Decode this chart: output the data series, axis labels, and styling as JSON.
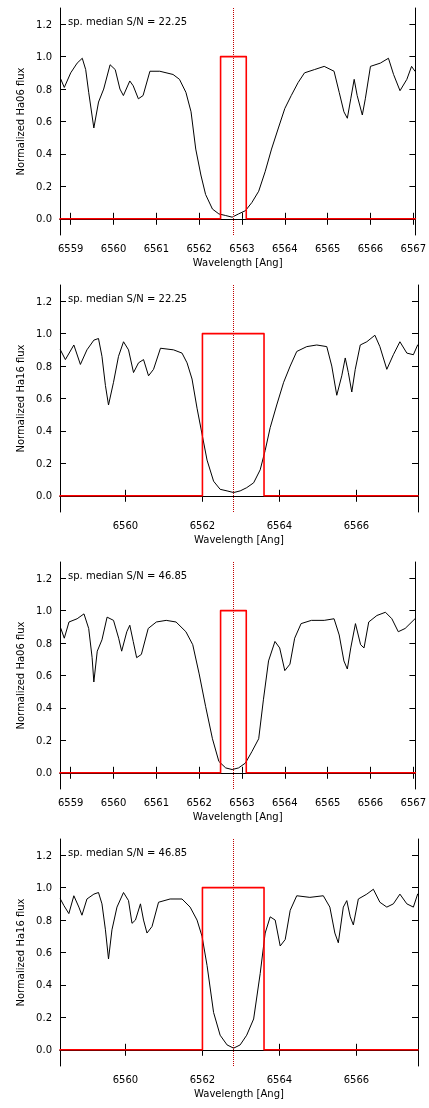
{
  "chart_data": [
    {
      "type": "line",
      "xlabel": "Wavelength [Ang]",
      "ylabel": "Normalized Ha06 flux",
      "annotations": [
        "sp. median S/N = 22.25"
      ],
      "xlim": [
        6558.75,
        6567.05
      ],
      "ylim": [
        -0.1,
        1.3
      ],
      "xticks": [
        6559,
        6560,
        6561,
        6562,
        6563,
        6564,
        6565,
        6566,
        6567
      ],
      "yticks": [
        {
          "value": 0,
          "label": "0.0"
        },
        {
          "value": 0.2,
          "label": "0.2"
        },
        {
          "value": 0.4,
          "label": "0.4"
        },
        {
          "value": 0.6,
          "label": "0.6"
        },
        {
          "value": 0.8,
          "label": "0.8"
        },
        {
          "value": 1,
          "label": "1.0"
        },
        {
          "value": 1.2,
          "label": "1.2"
        }
      ],
      "grid": false,
      "marker": "none",
      "line_style": "solid",
      "ref_lines": [
        {
          "axis": "x",
          "value": 6562.8,
          "color": "#c00000",
          "line_style": "dotted"
        }
      ],
      "series": [
        {
          "color": "#000000",
          "x": [
            6558.77,
            6558.85,
            6559.0,
            6559.15,
            6559.27,
            6559.35,
            6559.42,
            6559.54,
            6559.65,
            6559.77,
            6559.92,
            6560.04,
            6560.15,
            6560.23,
            6560.38,
            6560.46,
            6560.58,
            6560.69,
            6560.85,
            6561.08,
            6561.39,
            6561.54,
            6561.69,
            6561.81,
            6561.92,
            6562.04,
            6562.15,
            6562.31,
            6562.46,
            6562.62,
            6562.77,
            6562.92,
            6563.08,
            6563.23,
            6563.39,
            6563.54,
            6563.69,
            6563.85,
            6564.0,
            6564.15,
            6564.31,
            6564.46,
            6564.69,
            6564.92,
            6565.15,
            6565.27,
            6565.38,
            6565.46,
            6565.54,
            6565.62,
            6565.69,
            6565.81,
            6565.88,
            6566.0,
            6566.23,
            6566.42,
            6566.54,
            6566.69,
            6566.85,
            6566.96,
            6567.04
          ],
          "values": [
            0.86,
            0.81,
            0.9,
            0.96,
            0.99,
            0.92,
            0.78,
            0.56,
            0.72,
            0.8,
            0.95,
            0.92,
            0.8,
            0.76,
            0.85,
            0.82,
            0.74,
            0.76,
            0.91,
            0.91,
            0.89,
            0.86,
            0.78,
            0.66,
            0.43,
            0.27,
            0.15,
            0.06,
            0.03,
            0.02,
            0.01,
            0.03,
            0.05,
            0.1,
            0.17,
            0.29,
            0.43,
            0.56,
            0.68,
            0.76,
            0.84,
            0.9,
            0.92,
            0.94,
            0.91,
            0.78,
            0.66,
            0.62,
            0.74,
            0.86,
            0.76,
            0.64,
            0.74,
            0.94,
            0.96,
            0.99,
            0.89,
            0.79,
            0.86,
            0.94,
            0.91
          ]
        },
        {
          "color": "#ff0000",
          "x": [
            6558.75,
            6562.5,
            6562.5,
            6563.1,
            6563.1,
            6567.05
          ],
          "values": [
            0,
            0,
            1,
            1,
            0,
            0
          ]
        }
      ]
    },
    {
      "type": "line",
      "xlabel": "Wavelength [Ang]",
      "ylabel": "Normalized Ha16 flux",
      "annotations": [
        "sp. median S/N = 22.25"
      ],
      "xlim": [
        6558.3,
        6567.6
      ],
      "ylim": [
        -0.1,
        1.3
      ],
      "xticks": [
        6560,
        6562,
        6564,
        6566
      ],
      "yticks": [
        {
          "value": 0,
          "label": "0.0"
        },
        {
          "value": 0.2,
          "label": "0.2"
        },
        {
          "value": 0.4,
          "label": "0.4"
        },
        {
          "value": 0.6,
          "label": "0.6"
        },
        {
          "value": 0.8,
          "label": "0.8"
        },
        {
          "value": 1,
          "label": "1.0"
        },
        {
          "value": 1.2,
          "label": "1.2"
        }
      ],
      "grid": false,
      "marker": "none",
      "line_style": "solid",
      "ref_lines": [
        {
          "axis": "x",
          "value": 6562.8,
          "color": "#c00000",
          "line_style": "dotted"
        }
      ],
      "series": [
        {
          "color": "#000000",
          "x": [
            6558.31,
            6558.44,
            6558.66,
            6558.83,
            6559.0,
            6559.18,
            6559.3,
            6559.39,
            6559.48,
            6559.56,
            6559.69,
            6559.82,
            6559.95,
            6560.08,
            6560.21,
            6560.34,
            6560.47,
            6560.6,
            6560.73,
            6560.91,
            6561.25,
            6561.47,
            6561.6,
            6561.73,
            6561.86,
            6561.99,
            6562.12,
            6562.29,
            6562.46,
            6562.64,
            6562.81,
            6562.98,
            6563.15,
            6563.33,
            6563.5,
            6563.63,
            6563.76,
            6563.93,
            6564.11,
            6564.28,
            6564.45,
            6564.71,
            6564.97,
            6565.23,
            6565.36,
            6565.49,
            6565.62,
            6565.71,
            6565.79,
            6565.88,
            6565.97,
            6566.1,
            6566.27,
            6566.48,
            6566.61,
            6566.79,
            6566.96,
            6567.13,
            6567.31,
            6567.48,
            6567.59
          ],
          "values": [
            0.9,
            0.84,
            0.93,
            0.81,
            0.9,
            0.96,
            0.97,
            0.86,
            0.68,
            0.56,
            0.7,
            0.86,
            0.95,
            0.9,
            0.76,
            0.82,
            0.84,
            0.74,
            0.78,
            0.91,
            0.9,
            0.88,
            0.82,
            0.72,
            0.54,
            0.38,
            0.22,
            0.09,
            0.04,
            0.03,
            0.02,
            0.03,
            0.05,
            0.08,
            0.16,
            0.28,
            0.42,
            0.56,
            0.7,
            0.8,
            0.89,
            0.92,
            0.93,
            0.92,
            0.8,
            0.62,
            0.74,
            0.85,
            0.76,
            0.64,
            0.78,
            0.93,
            0.95,
            0.99,
            0.92,
            0.78,
            0.87,
            0.95,
            0.88,
            0.87,
            0.93
          ]
        },
        {
          "color": "#ff0000",
          "x": [
            6558.3,
            6562.0,
            6562.0,
            6563.6,
            6563.6,
            6567.6
          ],
          "values": [
            0,
            0,
            1,
            1,
            0,
            0
          ]
        }
      ]
    },
    {
      "type": "line",
      "xlabel": "Wavelength [Ang]",
      "ylabel": "Normalized Ha06 flux",
      "annotations": [
        "sp. median S/N = 46.85"
      ],
      "xlim": [
        6558.75,
        6567.05
      ],
      "ylim": [
        -0.1,
        1.3
      ],
      "xticks": [
        6559,
        6560,
        6561,
        6562,
        6563,
        6564,
        6565,
        6566,
        6567
      ],
      "yticks": [
        {
          "value": 0,
          "label": "0.0"
        },
        {
          "value": 0.2,
          "label": "0.2"
        },
        {
          "value": 0.4,
          "label": "0.4"
        },
        {
          "value": 0.6,
          "label": "0.6"
        },
        {
          "value": 0.8,
          "label": "0.8"
        },
        {
          "value": 1,
          "label": "1.0"
        },
        {
          "value": 1.2,
          "label": "1.2"
        }
      ],
      "grid": false,
      "marker": "none",
      "line_style": "solid",
      "ref_lines": [
        {
          "axis": "x",
          "value": 6562.8,
          "color": "#c00000",
          "line_style": "dotted"
        }
      ],
      "series": [
        {
          "color": "#000000",
          "x": [
            6558.77,
            6558.85,
            6558.96,
            6559.15,
            6559.31,
            6559.42,
            6559.5,
            6559.54,
            6559.62,
            6559.73,
            6559.85,
            6560.0,
            6560.12,
            6560.19,
            6560.31,
            6560.38,
            6560.46,
            6560.54,
            6560.65,
            6560.81,
            6561.0,
            6561.23,
            6561.46,
            6561.69,
            6561.85,
            6562.0,
            6562.15,
            6562.31,
            6562.46,
            6562.62,
            6562.77,
            6562.92,
            6563.08,
            6563.23,
            6563.39,
            6563.5,
            6563.62,
            6563.77,
            6563.88,
            6564.0,
            6564.12,
            6564.23,
            6564.38,
            6564.62,
            6564.92,
            6565.15,
            6565.27,
            6565.38,
            6565.46,
            6565.54,
            6565.65,
            6565.77,
            6565.85,
            6565.96,
            6566.15,
            6566.35,
            6566.5,
            6566.65,
            6566.81,
            6567.04
          ],
          "values": [
            0.89,
            0.83,
            0.93,
            0.95,
            0.98,
            0.89,
            0.71,
            0.56,
            0.75,
            0.82,
            0.96,
            0.94,
            0.83,
            0.75,
            0.87,
            0.91,
            0.81,
            0.71,
            0.73,
            0.89,
            0.93,
            0.94,
            0.93,
            0.87,
            0.79,
            0.61,
            0.41,
            0.21,
            0.07,
            0.03,
            0.02,
            0.03,
            0.06,
            0.13,
            0.21,
            0.45,
            0.69,
            0.81,
            0.77,
            0.63,
            0.67,
            0.83,
            0.92,
            0.94,
            0.94,
            0.95,
            0.85,
            0.69,
            0.64,
            0.77,
            0.92,
            0.79,
            0.77,
            0.93,
            0.97,
            0.99,
            0.95,
            0.87,
            0.89,
            0.95
          ]
        },
        {
          "color": "#ff0000",
          "x": [
            6558.75,
            6562.5,
            6562.5,
            6563.1,
            6563.1,
            6567.05
          ],
          "values": [
            0,
            0,
            1,
            1,
            0,
            0
          ]
        }
      ]
    },
    {
      "type": "line",
      "xlabel": "Wavelength [Ang]",
      "ylabel": "Normalized Ha16 flux",
      "annotations": [
        "sp. median S/N = 46.85"
      ],
      "xlim": [
        6558.3,
        6567.6
      ],
      "ylim": [
        -0.1,
        1.3
      ],
      "xticks": [
        6560,
        6562,
        6564,
        6566
      ],
      "yticks": [
        {
          "value": 0,
          "label": "0.0"
        },
        {
          "value": 0.2,
          "label": "0.2"
        },
        {
          "value": 0.4,
          "label": "0.4"
        },
        {
          "value": 0.6,
          "label": "0.6"
        },
        {
          "value": 0.8,
          "label": "0.8"
        },
        {
          "value": 1,
          "label": "1.0"
        },
        {
          "value": 1.2,
          "label": "1.2"
        }
      ],
      "grid": false,
      "marker": "none",
      "line_style": "solid",
      "ref_lines": [
        {
          "axis": "x",
          "value": 6562.8,
          "color": "#c00000",
          "line_style": "dotted"
        }
      ],
      "series": [
        {
          "color": "#000000",
          "x": [
            6558.31,
            6558.4,
            6558.53,
            6558.66,
            6558.79,
            6558.87,
            6559.0,
            6559.18,
            6559.3,
            6559.39,
            6559.48,
            6559.56,
            6559.65,
            6559.78,
            6559.95,
            6560.08,
            6560.17,
            6560.26,
            6560.39,
            6560.47,
            6560.56,
            6560.69,
            6560.86,
            6561.16,
            6561.47,
            6561.68,
            6561.86,
            6561.99,
            6562.12,
            6562.29,
            6562.46,
            6562.64,
            6562.81,
            6562.98,
            6563.15,
            6563.33,
            6563.5,
            6563.63,
            6563.76,
            6563.89,
            6564.02,
            6564.15,
            6564.28,
            6564.45,
            6564.79,
            6565.14,
            6565.31,
            6565.44,
            6565.53,
            6565.66,
            6565.75,
            6565.84,
            6565.92,
            6566.05,
            6566.27,
            6566.44,
            6566.61,
            6566.79,
            6566.96,
            6567.13,
            6567.31,
            6567.48,
            6567.59
          ],
          "values": [
            0.93,
            0.89,
            0.84,
            0.95,
            0.88,
            0.83,
            0.93,
            0.96,
            0.97,
            0.9,
            0.74,
            0.56,
            0.74,
            0.88,
            0.97,
            0.92,
            0.78,
            0.8,
            0.9,
            0.8,
            0.72,
            0.76,
            0.91,
            0.93,
            0.93,
            0.88,
            0.8,
            0.7,
            0.52,
            0.23,
            0.09,
            0.03,
            0.01,
            0.03,
            0.09,
            0.19,
            0.47,
            0.72,
            0.82,
            0.8,
            0.64,
            0.68,
            0.86,
            0.95,
            0.94,
            0.95,
            0.88,
            0.72,
            0.66,
            0.88,
            0.92,
            0.82,
            0.77,
            0.93,
            0.96,
            0.99,
            0.91,
            0.88,
            0.9,
            0.96,
            0.9,
            0.88,
            0.96
          ]
        },
        {
          "color": "#ff0000",
          "x": [
            6558.3,
            6562.0,
            6562.0,
            6563.6,
            6563.6,
            6567.6
          ],
          "values": [
            0,
            0,
            1,
            1,
            0,
            0
          ]
        }
      ]
    }
  ]
}
